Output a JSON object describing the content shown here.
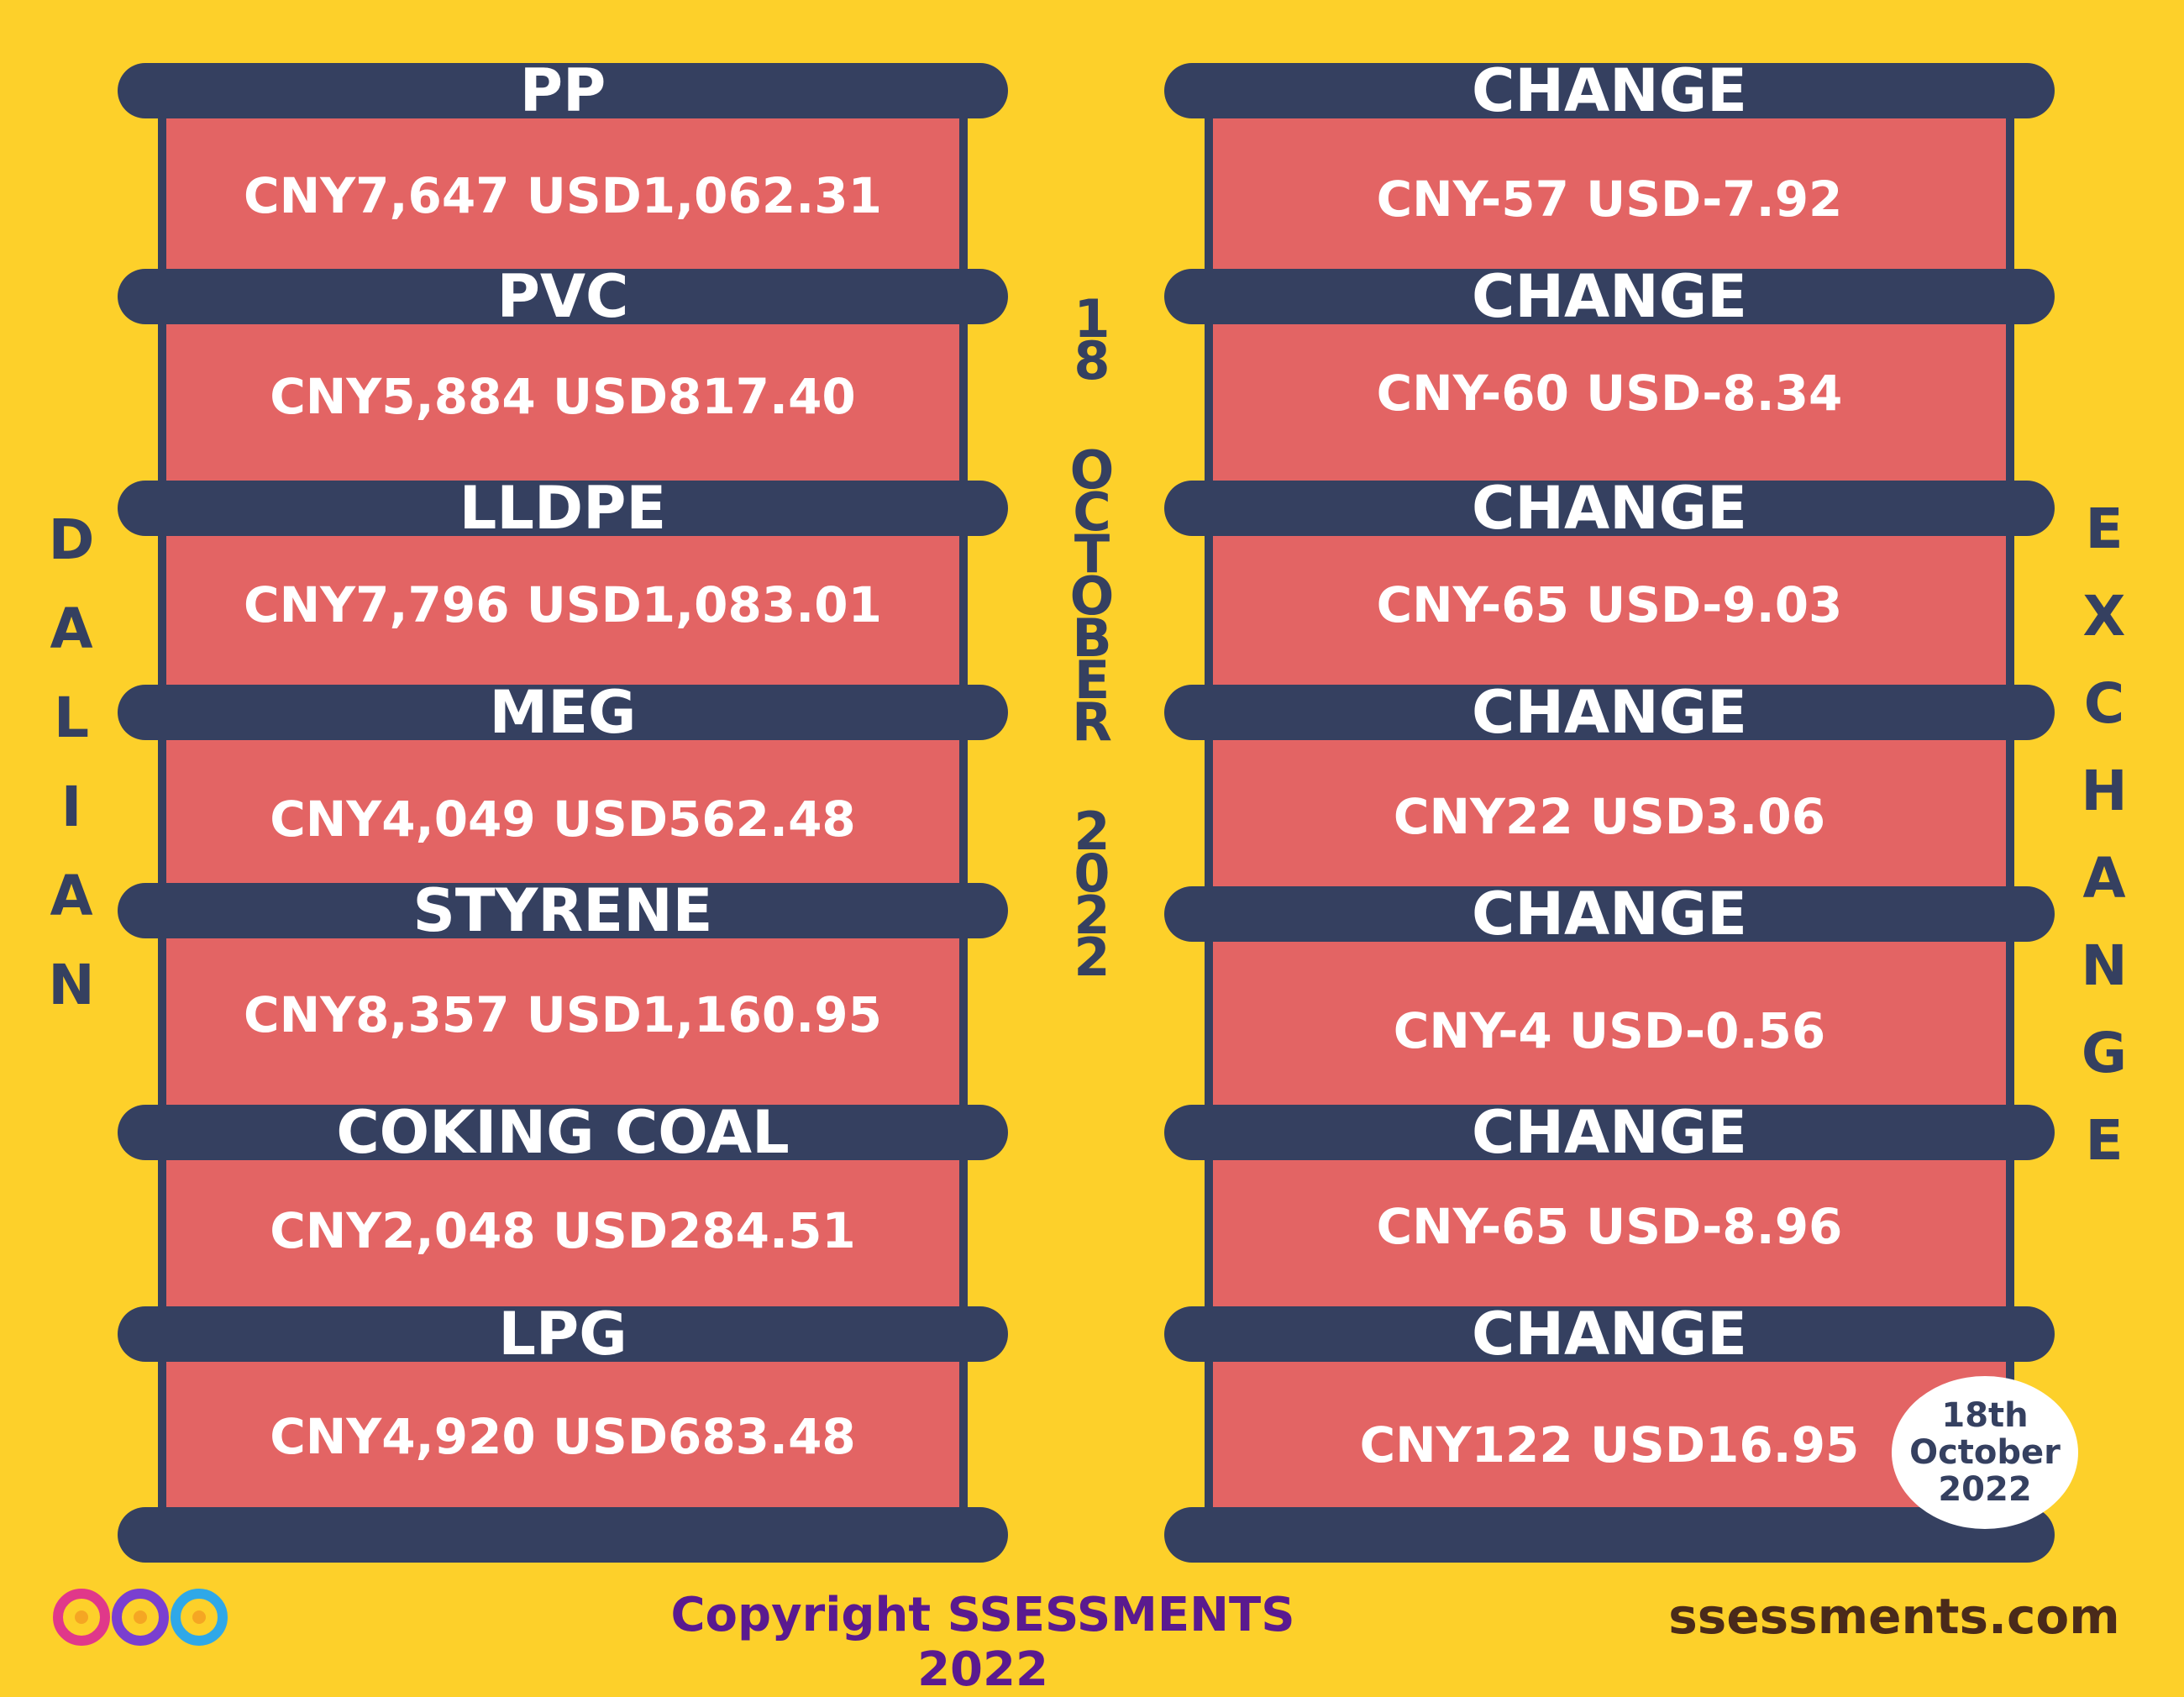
{
  "left_title": [
    "D",
    "A",
    "L",
    "I",
    "A",
    "N"
  ],
  "right_title": [
    "E",
    "X",
    "C",
    "H",
    "A",
    "N",
    "G",
    "E"
  ],
  "date_vertical": [
    "1",
    "8",
    "",
    "O",
    "C",
    "T",
    "O",
    "B",
    "E",
    "R",
    "",
    "2",
    "0",
    "2",
    "2"
  ],
  "products": [
    {
      "name": "PP",
      "price": "CNY7,647 USD1,062.31",
      "change_label": "CHANGE",
      "change": "CNY-57 USD-7.92"
    },
    {
      "name": "PVC",
      "price": "CNY5,884 USD817.40",
      "change_label": "CHANGE",
      "change": "CNY-60 USD-8.34"
    },
    {
      "name": "LLDPE",
      "price": "CNY7,796 USD1,083.01",
      "change_label": "CHANGE",
      "change": "CNY-65 USD-9.03"
    },
    {
      "name": "MEG",
      "price": "CNY4,049 USD562.48",
      "change_label": "CHANGE",
      "change": "CNY22 USD3.06"
    },
    {
      "name": "STYRENE",
      "price": "CNY8,357 USD1,160.95",
      "change_label": "CHANGE",
      "change": "CNY-4 USD-0.56"
    },
    {
      "name": "COKING COAL",
      "price": "CNY2,048 USD284.51",
      "change_label": "CHANGE",
      "change": "CNY-65 USD-8.96"
    },
    {
      "name": "LPG",
      "price": "CNY4,920 USD683.48",
      "change_label": "CHANGE",
      "change": "CNY122 USD16.95"
    }
  ],
  "badge": {
    "line1": "18th",
    "line2": "October",
    "line3": "2022"
  },
  "footer": {
    "copyright": "Copyright SSESSMENTS 2022",
    "website": "ssessments.com"
  },
  "colors": {
    "background": "#FDD02A",
    "bar": "#354060",
    "panel": "#E36464",
    "copyright_text": "#5A1A8F"
  },
  "icons": {
    "logo": "infinity-circles-logo"
  }
}
